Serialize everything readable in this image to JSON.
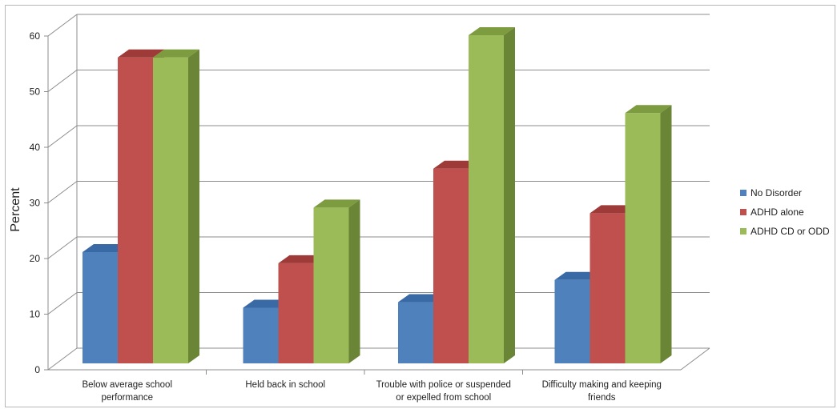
{
  "chart_data": {
    "type": "bar",
    "title": "",
    "ylabel": "Percent",
    "xlabel": "",
    "ylim": [
      0,
      60
    ],
    "yticks": [
      0,
      10,
      20,
      30,
      40,
      50,
      60
    ],
    "grid": true,
    "legend_position": "right",
    "style": "3d-clustered-column",
    "categories": [
      [
        "Below average school",
        "performance"
      ],
      [
        "Held back in school"
      ],
      [
        "Trouble with police or suspended",
        "or expelled from school"
      ],
      [
        "Difficulty making and keeping",
        "friends"
      ]
    ],
    "series": [
      {
        "name": "No Disorder",
        "color": "#4f81bd",
        "top": "#3a6aa6",
        "side": "#2f5c93",
        "values": [
          20,
          10,
          11,
          15
        ]
      },
      {
        "name": "ADHD alone",
        "color": "#c0504d",
        "top": "#9e3b38",
        "side": "#8c2f2d",
        "values": [
          55,
          18,
          35,
          27
        ]
      },
      {
        "name": "ADHD CD or ODD",
        "color": "#9bbb59",
        "top": "#7d9b3f",
        "side": "#6b8537",
        "values": [
          55,
          28,
          59,
          45
        ]
      }
    ]
  }
}
